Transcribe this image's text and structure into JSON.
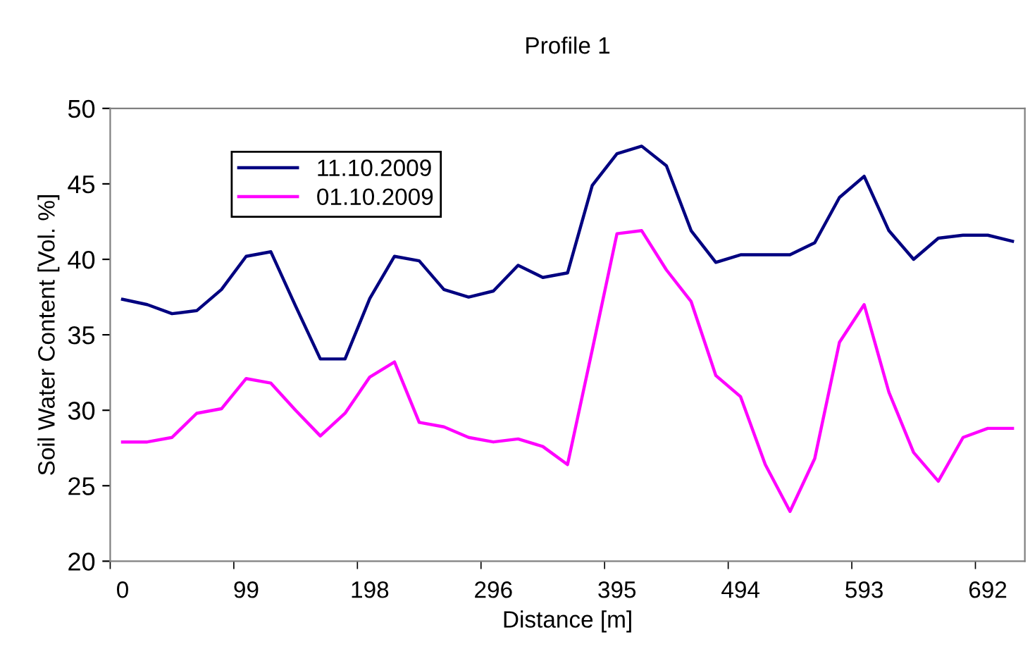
{
  "chart_data": {
    "type": "line",
    "title": "Profile 1",
    "xlabel": "Distance [m]",
    "ylabel": "Soil Water Content [Vol. %]",
    "categories": [
      "0",
      null,
      null,
      null,
      null,
      "99",
      null,
      null,
      null,
      null,
      "198",
      null,
      null,
      null,
      null,
      "296",
      null,
      null,
      null,
      null,
      "395",
      null,
      null,
      null,
      null,
      "494",
      null,
      null,
      null,
      null,
      "593",
      null,
      null,
      null,
      null,
      "692",
      null
    ],
    "series": [
      {
        "name": "11.10.2009",
        "color": "#000080",
        "values": [
          37.35,
          37.0,
          36.4,
          36.6,
          38.0,
          40.2,
          40.5,
          36.9,
          33.4,
          33.4,
          37.4,
          40.2,
          39.9,
          38.0,
          37.5,
          37.9,
          39.6,
          38.8,
          39.1,
          44.9,
          47.0,
          47.5,
          46.2,
          41.9,
          39.8,
          40.3,
          40.3,
          40.3,
          41.1,
          44.1,
          45.5,
          41.9,
          40.0,
          41.4,
          41.6,
          41.6,
          41.2
        ]
      },
      {
        "name": "01.10.2009",
        "color": "#ff00ff",
        "values": [
          27.9,
          27.9,
          28.2,
          29.8,
          30.1,
          32.1,
          31.8,
          30.0,
          28.3,
          29.8,
          32.2,
          33.2,
          29.2,
          28.9,
          28.2,
          27.9,
          28.1,
          27.6,
          26.4,
          34.0,
          41.7,
          41.9,
          39.3,
          37.2,
          32.3,
          30.9,
          26.4,
          23.3,
          26.8,
          34.5,
          37.0,
          31.2,
          27.2,
          25.3,
          28.2,
          28.8,
          28.8
        ]
      }
    ],
    "ylim": [
      20,
      50
    ],
    "yticks": [
      20,
      25,
      30,
      35,
      40,
      45,
      50
    ],
    "grid": false,
    "legend": "top left",
    "marker": "none",
    "line_style": "solid"
  }
}
